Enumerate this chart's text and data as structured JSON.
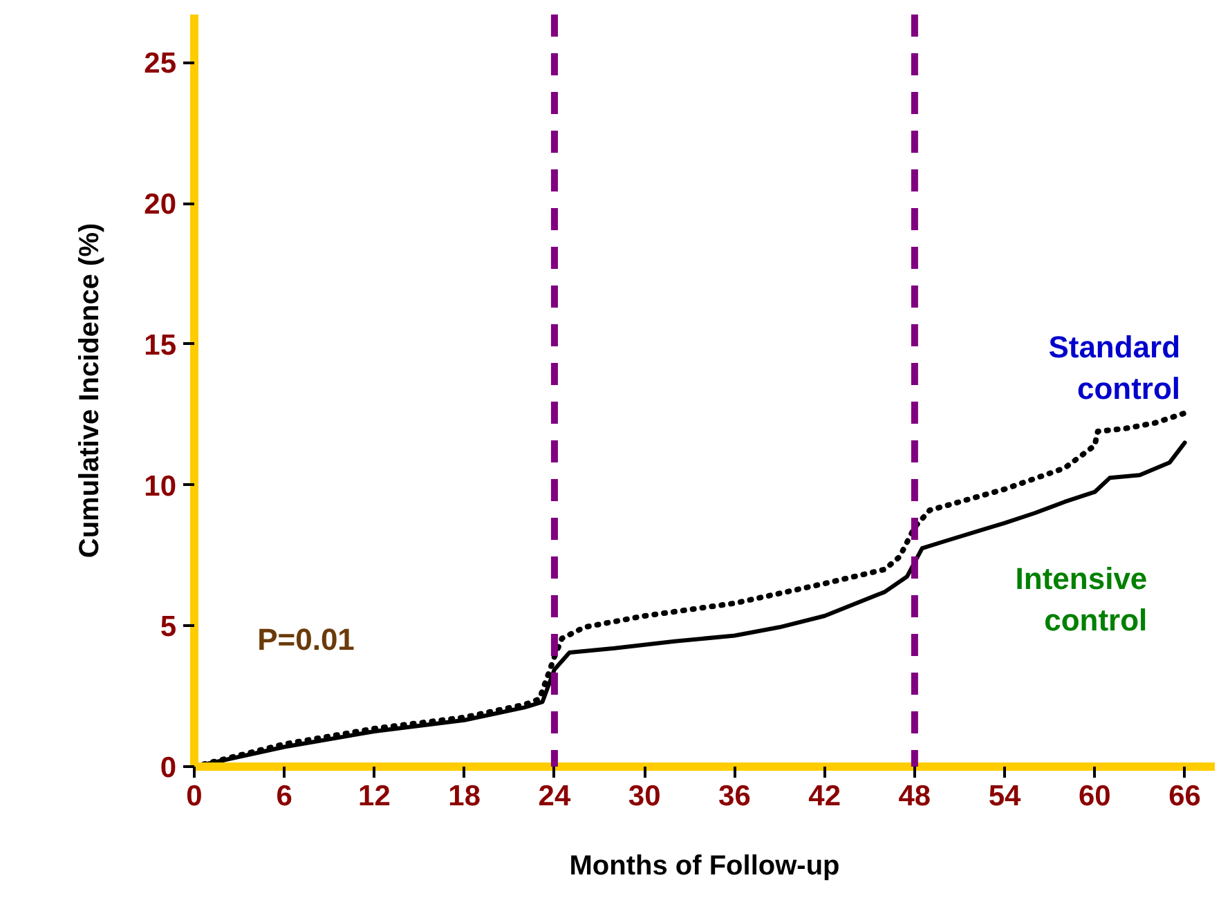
{
  "chart_data": {
    "type": "line",
    "xlabel": "Months of Follow-up",
    "ylabel": "Cumulative Incidence (%)",
    "xlim": [
      0,
      68
    ],
    "ylim": [
      0,
      26.7
    ],
    "xticks": [
      0,
      6,
      12,
      18,
      24,
      30,
      36,
      42,
      48,
      54,
      60,
      66
    ],
    "yticks": [
      0,
      5,
      10,
      15,
      20,
      25
    ],
    "grid": false,
    "marker": "none",
    "series": [
      {
        "name": "Standard control",
        "color": "#000000",
        "line_style": "dotted",
        "x": [
          0,
          6,
          12,
          18,
          22,
          23,
          24,
          24.5,
          26,
          30,
          36,
          42,
          46,
          47,
          48,
          49,
          54,
          58,
          60,
          60.2,
          62,
          64,
          66
        ],
        "values": [
          0,
          0.8,
          1.35,
          1.75,
          2.2,
          2.4,
          3.9,
          4.55,
          4.95,
          5.35,
          5.8,
          6.5,
          7.0,
          7.45,
          8.5,
          9.1,
          9.85,
          10.6,
          11.4,
          11.9,
          12.0,
          12.2,
          12.55
        ]
      },
      {
        "name": "Intensive control",
        "color": "#000000",
        "line_style": "solid",
        "x": [
          0,
          6,
          12,
          18,
          22,
          23.2,
          24,
          25,
          28,
          32,
          36,
          39,
          42,
          46,
          47.5,
          48.5,
          50,
          54,
          56,
          58,
          60,
          61,
          63,
          65,
          66
        ],
        "values": [
          0,
          0.7,
          1.25,
          1.65,
          2.1,
          2.3,
          3.45,
          4.05,
          4.2,
          4.45,
          4.65,
          4.95,
          5.35,
          6.2,
          6.75,
          7.75,
          8.0,
          8.65,
          9.0,
          9.4,
          9.75,
          10.25,
          10.35,
          10.8,
          11.5
        ]
      }
    ],
    "ref_lines": [
      {
        "axis": "x",
        "value": 24,
        "color": "#800080",
        "line_style": "dashed"
      },
      {
        "axis": "x",
        "value": 48,
        "color": "#800080",
        "line_style": "dashed"
      }
    ],
    "annotations": [
      "P=0.01"
    ]
  }
}
